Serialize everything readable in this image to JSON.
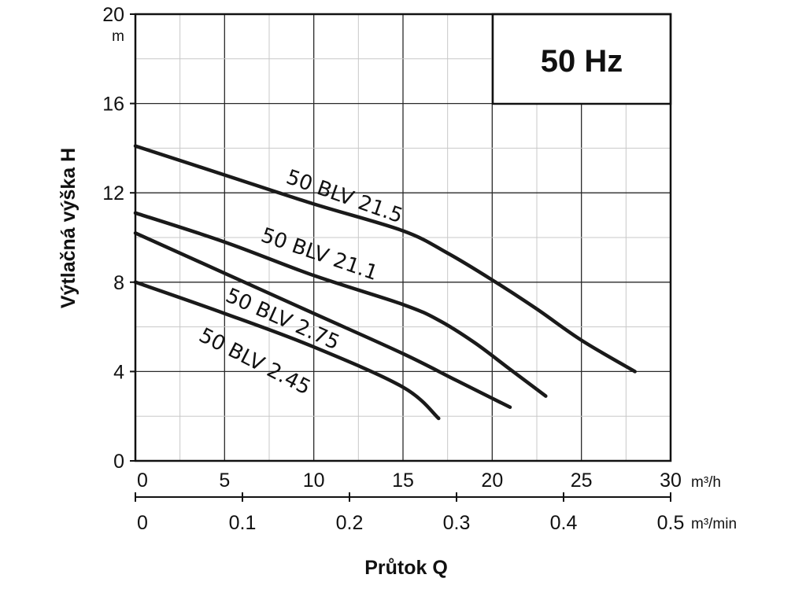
{
  "chart_data": {
    "type": "line",
    "frequency_label": "50 Hz",
    "ylabel": "Výtlačná výška H",
    "yunit": "m",
    "ylim": [
      0,
      20
    ],
    "yticks": [
      "0",
      "4",
      "8",
      "12",
      "16",
      "20"
    ],
    "xlabel": "Průtok Q",
    "xunit_primary": "m³/h",
    "xlim": [
      0,
      30
    ],
    "xticks_primary": [
      "0",
      "5",
      "10",
      "15",
      "20",
      "25",
      "30"
    ],
    "xunit_secondary": "m³/min",
    "xticks_secondary": [
      "0",
      "0.1",
      "0.2",
      "0.3",
      "0.4",
      "0.5"
    ],
    "grid": true,
    "series": [
      {
        "name": "50 BLV 21.5",
        "x": [
          0,
          5,
          10,
          15,
          17.5,
          20,
          22.5,
          25,
          28
        ],
        "y": [
          14.1,
          12.8,
          11.5,
          10.3,
          9.3,
          8.1,
          6.8,
          5.4,
          4.0
        ]
      },
      {
        "name": "50 BLV 21.1",
        "x": [
          0,
          5,
          10,
          15,
          17,
          19,
          21,
          23
        ],
        "y": [
          11.1,
          9.8,
          8.3,
          7.0,
          6.3,
          5.3,
          4.1,
          2.9
        ]
      },
      {
        "name": "50 BLV 2.75",
        "x": [
          0,
          5,
          10,
          15,
          18,
          21
        ],
        "y": [
          10.2,
          8.4,
          6.6,
          4.8,
          3.6,
          2.4
        ]
      },
      {
        "name": "50 BLV 2.45",
        "x": [
          0,
          5,
          10,
          15,
          17
        ],
        "y": [
          8.0,
          6.6,
          5.1,
          3.3,
          1.9
        ]
      }
    ]
  }
}
